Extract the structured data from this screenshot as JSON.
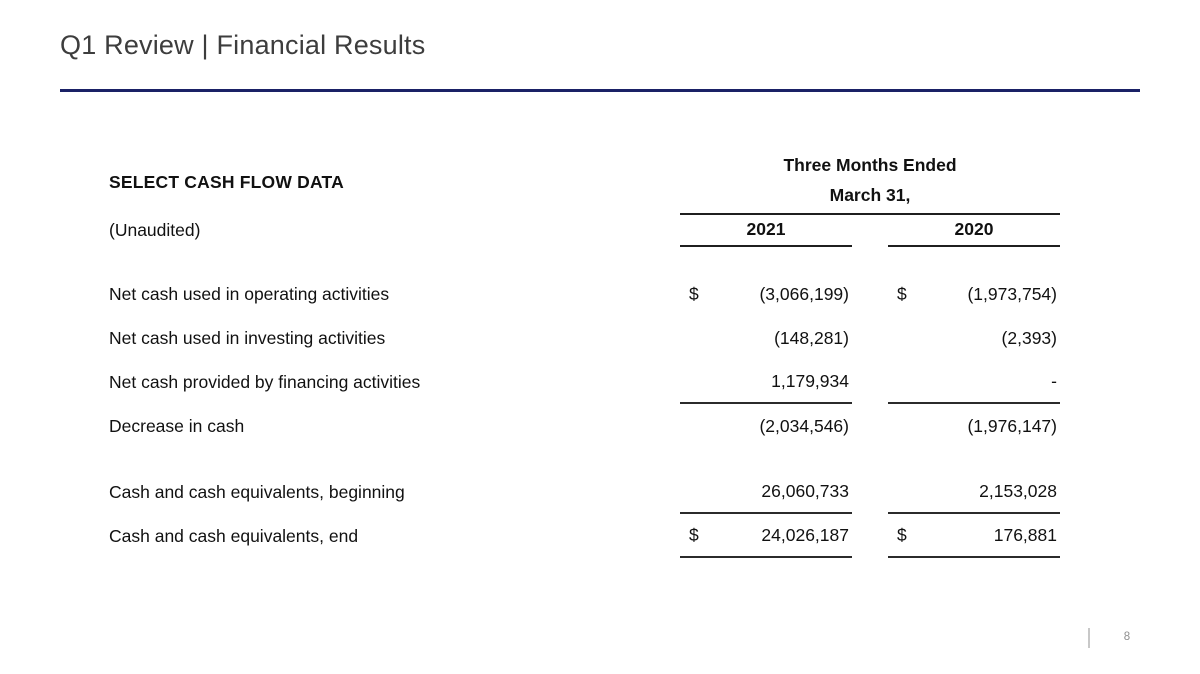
{
  "slide": {
    "title": "Q1 Review | Financial Results",
    "accent_color": "#1a2166",
    "page_number": "8"
  },
  "table": {
    "title": "SELECT CASH FLOW DATA",
    "subtitle": "(Unaudited)",
    "period_header_line1": "Three Months Ended",
    "period_header_line2": "March 31,",
    "columns": [
      "2021",
      "2020"
    ],
    "rows": [
      {
        "label": "Net cash used in operating activities",
        "cur2021": "$",
        "val2021": "(3,066,199)",
        "cur2020": "$",
        "val2020": "(1,973,754)"
      },
      {
        "label": "Net cash used in investing activities",
        "cur2021": "",
        "val2021": "(148,281)",
        "cur2020": "",
        "val2020": "(2,393)"
      },
      {
        "label": "Net cash provided by financing activities",
        "cur2021": "",
        "val2021": "1,179,934",
        "cur2020": "",
        "val2020": "-"
      },
      {
        "label": "Decrease in cash",
        "cur2021": "",
        "val2021": "(2,034,546)",
        "cur2020": "",
        "val2020": "(1,976,147)"
      },
      {
        "label": "Cash and cash equivalents, beginning",
        "cur2021": "",
        "val2021": "26,060,733",
        "cur2020": "",
        "val2020": "2,153,028"
      },
      {
        "label": "Cash and cash equivalents, end",
        "cur2021": "$",
        "val2021": "24,026,187",
        "cur2020": "$",
        "val2020": "176,881"
      }
    ]
  }
}
